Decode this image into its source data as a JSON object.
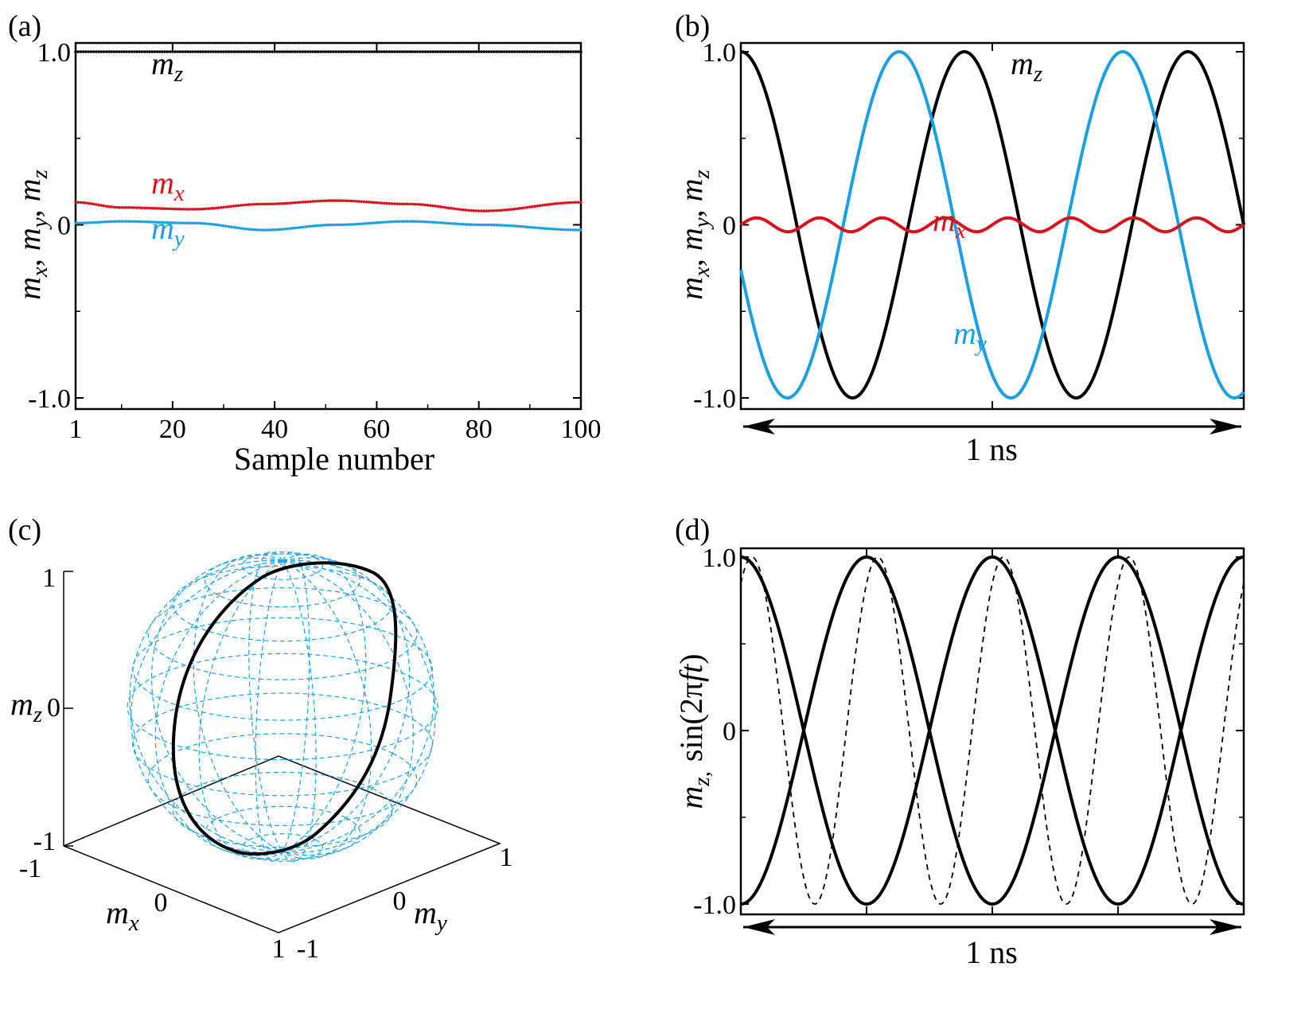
{
  "colors": {
    "mx": "#d7141e",
    "my": "#1aa0e0",
    "mz": "#000000",
    "sphere": "#1aa0e0"
  },
  "chart_data": [
    {
      "panel": "(a)",
      "type": "scatter",
      "xlabel": "Sample number",
      "ylabel": "m_x, m_y, m_z",
      "xlim": [
        1,
        100
      ],
      "ylim": [
        -1.0,
        1.0
      ],
      "xticks": [
        "1",
        "20",
        "40",
        "60",
        "80",
        "100"
      ],
      "yticks": [
        "1.0",
        "0",
        "-1.0"
      ],
      "series": [
        {
          "name": "m_z",
          "label_base": "m",
          "label_sub": "z",
          "color": "#000000",
          "x": [
            1,
            20,
            40,
            60,
            80,
            100
          ],
          "values": [
            1.0,
            1.0,
            1.0,
            1.0,
            1.0,
            1.0
          ]
        },
        {
          "name": "m_x",
          "label_base": "m",
          "label_sub": "x",
          "color": "#d7141e",
          "x": [
            1,
            10,
            24,
            38,
            52,
            66,
            81,
            100
          ],
          "values": [
            0.13,
            0.1,
            0.09,
            0.12,
            0.14,
            0.12,
            0.08,
            0.13
          ]
        },
        {
          "name": "m_y",
          "label_base": "m",
          "label_sub": "y",
          "color": "#1aa0e0",
          "x": [
            1,
            10,
            24,
            38,
            52,
            66,
            81,
            100
          ],
          "values": [
            0.01,
            0.02,
            0.01,
            -0.03,
            0.0,
            0.02,
            0.0,
            -0.03
          ]
        }
      ]
    },
    {
      "panel": "(b)",
      "type": "line",
      "ylabel": "m_x, m_y, m_z",
      "ylim": [
        -1.0,
        1.0
      ],
      "yticks": [
        "1.0",
        "0",
        "-1.0"
      ],
      "time_label": "1 ns",
      "series": [
        {
          "name": "m_z",
          "label_base": "m",
          "label_sub": "z",
          "color": "#000000",
          "amplitude": 1.0,
          "cycles": 2.25,
          "phase_deg": 90
        },
        {
          "name": "m_y",
          "label_base": "m",
          "label_sub": "y",
          "color": "#1aa0e0",
          "amplitude": 1.0,
          "cycles": 2.25,
          "phase_deg": 195
        },
        {
          "name": "m_x",
          "label_base": "m",
          "label_sub": "x",
          "color": "#d7141e",
          "amplitude": 0.04,
          "cycles": 8.0,
          "phase_deg": 0
        }
      ]
    },
    {
      "panel": "(c)",
      "type": "line",
      "axes3d": {
        "z_label_base": "m",
        "z_label_sub": "z",
        "x_label_base": "m",
        "x_label_sub": "x",
        "y_label_base": "m",
        "y_label_sub": "y",
        "z_ticks": [
          "1",
          "0",
          "-1"
        ],
        "x_ticks": [
          "-1",
          "0",
          "1"
        ],
        "y_ticks": [
          "-1",
          "0",
          "1"
        ]
      },
      "series": [
        {
          "name": "trajectory",
          "color": "#000000"
        }
      ]
    },
    {
      "panel": "(d)",
      "type": "line",
      "ylabel": "m_z, sin(2πft)",
      "ylim": [
        -1.0,
        1.0
      ],
      "yticks": [
        "1.0",
        "0",
        "-1.0"
      ],
      "time_label": "1 ns",
      "series": [
        {
          "name": "m_z (a)",
          "color": "#000000",
          "style": "solid",
          "amplitude": 1.0,
          "cycles": 2.0,
          "phase_deg": 90
        },
        {
          "name": "m_z (b)",
          "color": "#000000",
          "style": "solid",
          "amplitude": 1.0,
          "cycles": 2.0,
          "phase_deg": 270
        },
        {
          "name": "sin(2πft)",
          "color": "#000000",
          "style": "dashed",
          "amplitude": 1.0,
          "cycles": 4.0,
          "phase_deg": 58
        }
      ]
    }
  ],
  "labels": {
    "a_ylabel_parts": [
      "m",
      "x",
      ", ",
      "m",
      "y",
      ", ",
      "m",
      "z"
    ],
    "d_ylabel_m": "m",
    "d_ylabel_z": "z,",
    "d_ylabel_sin": "sin(2π",
    "d_ylabel_f": "ft",
    "d_ylabel_close": ")"
  }
}
